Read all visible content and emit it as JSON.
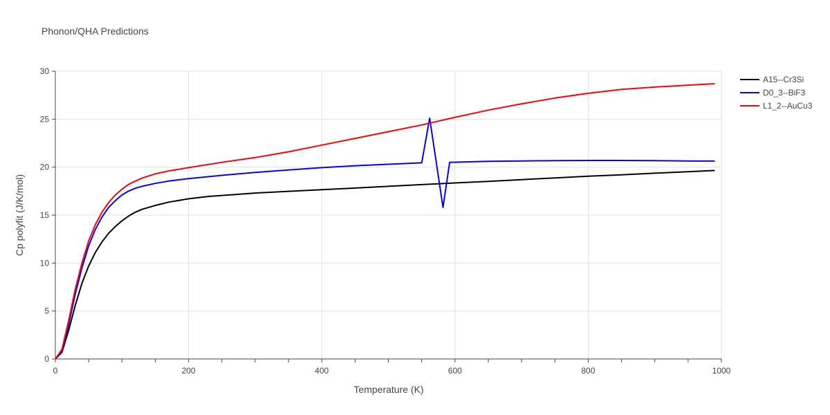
{
  "chart_data": {
    "type": "line",
    "title": "Phonon/QHA Predictions",
    "xlabel": "Temperature (K)",
    "ylabel": "Cp polyfit (J/K/mol)",
    "xlim": [
      0,
      1000
    ],
    "ylim": [
      0,
      30
    ],
    "xticks": [
      0,
      200,
      400,
      600,
      800,
      1000
    ],
    "yticks": [
      0,
      5,
      10,
      15,
      20,
      25,
      30
    ],
    "grid": true,
    "legend_position": "top-right",
    "series": [
      {
        "name": "A15--Cr3Si",
        "color": "#000000",
        "x": [
          0,
          10,
          20,
          30,
          40,
          50,
          60,
          70,
          80,
          90,
          100,
          110,
          120,
          130,
          150,
          170,
          200,
          230,
          270,
          300,
          350,
          400,
          450,
          500,
          550,
          600,
          650,
          700,
          750,
          800,
          850,
          900,
          950,
          990
        ],
        "y": [
          0,
          0.7,
          3.0,
          5.6,
          7.9,
          9.7,
          11.1,
          12.2,
          13.1,
          13.8,
          14.4,
          14.9,
          15.3,
          15.6,
          16.0,
          16.35,
          16.7,
          16.95,
          17.15,
          17.3,
          17.48,
          17.65,
          17.82,
          18.0,
          18.18,
          18.35,
          18.52,
          18.7,
          18.87,
          19.05,
          19.2,
          19.37,
          19.53,
          19.65
        ]
      },
      {
        "name": "D0_3--BiF3",
        "color": "#0000ff",
        "x": [
          0,
          10,
          20,
          30,
          40,
          50,
          60,
          70,
          80,
          90,
          100,
          110,
          120,
          130,
          150,
          170,
          200,
          250,
          300,
          350,
          400,
          450,
          500,
          550,
          562,
          582,
          592,
          650,
          700,
          750,
          800,
          850,
          900,
          950,
          990
        ],
        "y": [
          0,
          0.8,
          3.6,
          6.8,
          9.5,
          11.8,
          13.5,
          14.8,
          15.8,
          16.5,
          17.1,
          17.5,
          17.8,
          18.0,
          18.3,
          18.55,
          18.8,
          19.15,
          19.45,
          19.7,
          19.95,
          20.15,
          20.3,
          20.45,
          25.1,
          15.8,
          20.5,
          20.6,
          20.65,
          20.68,
          20.7,
          20.7,
          20.68,
          20.65,
          20.63
        ]
      },
      {
        "name": "L1_2--AuCu3",
        "color": "#ff0000",
        "x": [
          0,
          10,
          20,
          30,
          40,
          50,
          60,
          70,
          80,
          90,
          100,
          110,
          120,
          130,
          150,
          170,
          200,
          250,
          300,
          350,
          400,
          450,
          500,
          550,
          600,
          650,
          700,
          750,
          800,
          850,
          900,
          950,
          990
        ],
        "y": [
          0,
          1.0,
          4.0,
          7.3,
          10.0,
          12.3,
          14.0,
          15.3,
          16.3,
          17.1,
          17.7,
          18.2,
          18.55,
          18.85,
          19.3,
          19.6,
          19.95,
          20.5,
          21.0,
          21.6,
          22.3,
          23.0,
          23.7,
          24.4,
          25.2,
          25.95,
          26.6,
          27.2,
          27.7,
          28.1,
          28.35,
          28.55,
          28.7
        ]
      }
    ]
  }
}
